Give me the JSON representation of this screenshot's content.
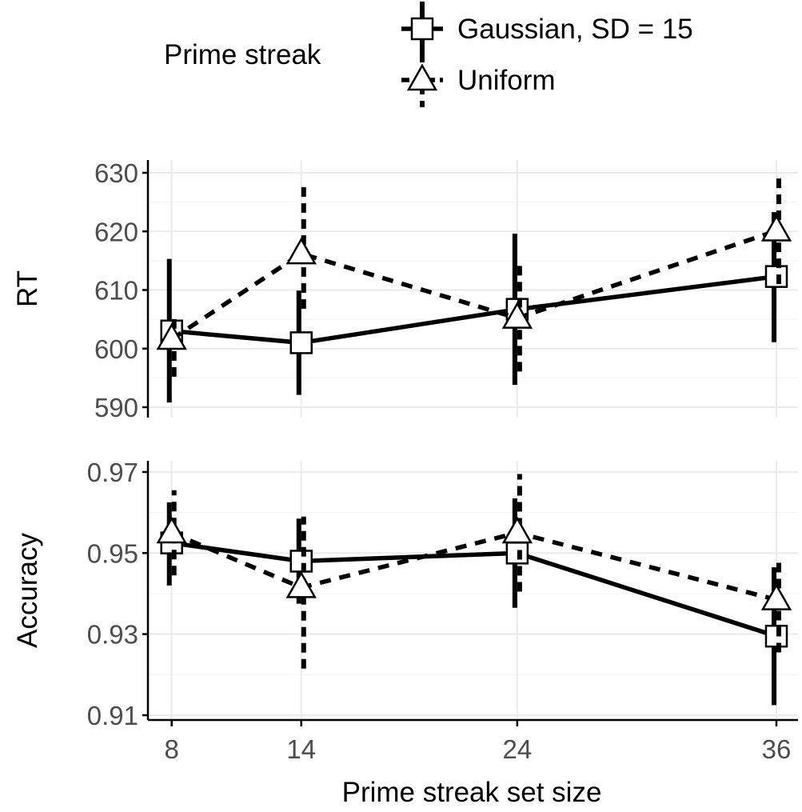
{
  "chart_data": {
    "type": "line",
    "xlabel": "Prime streak set size",
    "x": [
      8,
      14,
      24,
      36
    ],
    "xticks": [
      "8",
      "14",
      "24",
      "36"
    ],
    "legend": {
      "title": "Prime streak",
      "placement": "top",
      "entries": [
        {
          "label": "Gaussian, SD = 15",
          "marker": "square",
          "linestyle": "solid"
        },
        {
          "label": "Uniform",
          "marker": "triangle",
          "linestyle": "dashed"
        }
      ]
    },
    "grid": true,
    "panels": [
      {
        "id": "rt",
        "ylabel": "RT",
        "ylim": [
          590,
          630
        ],
        "yticks": [
          "590",
          "600",
          "610",
          "620",
          "630"
        ],
        "series": [
          {
            "name": "Gaussian, SD = 15",
            "marker": "square",
            "linestyle": "solid",
            "values": [
              603,
              601,
              606.7,
              612.3
            ],
            "err_low": [
              590.8,
              592.1,
              593.8,
              601.1
            ],
            "err_high": [
              615.3,
              609.9,
              619.6,
              623.3
            ]
          },
          {
            "name": "Uniform",
            "marker": "triangle",
            "linestyle": "dashed",
            "values": [
              601.6,
              616.2,
              605.2,
              620.1
            ],
            "err_low": [
              595.2,
              606.8,
              596.1,
              611.0
            ],
            "err_high": [
              606.0,
              628.5,
              614.6,
              629.9
            ]
          }
        ]
      },
      {
        "id": "accuracy",
        "ylabel": "Accuracy",
        "ylim": [
          0.91,
          0.97
        ],
        "yticks": [
          "0.91",
          "0.93",
          "0.95",
          "0.97"
        ],
        "series": [
          {
            "name": "Gaussian, SD = 15",
            "marker": "square",
            "linestyle": "solid",
            "values": [
              0.9525,
              0.948,
              0.95,
              0.9295
            ],
            "err_low": [
              0.942,
              0.9375,
              0.9365,
              0.9125
            ],
            "err_high": [
              0.9625,
              0.9585,
              0.9635,
              0.9465
            ]
          },
          {
            "name": "Uniform",
            "marker": "triangle",
            "linestyle": "dashed",
            "values": [
              0.955,
              0.9415,
              0.955,
              0.9385
            ],
            "err_low": [
              0.9445,
              0.9215,
              0.9405,
              0.9255
            ],
            "err_high": [
              0.9655,
              0.959,
              0.9695,
              0.949
            ]
          }
        ]
      }
    ]
  }
}
